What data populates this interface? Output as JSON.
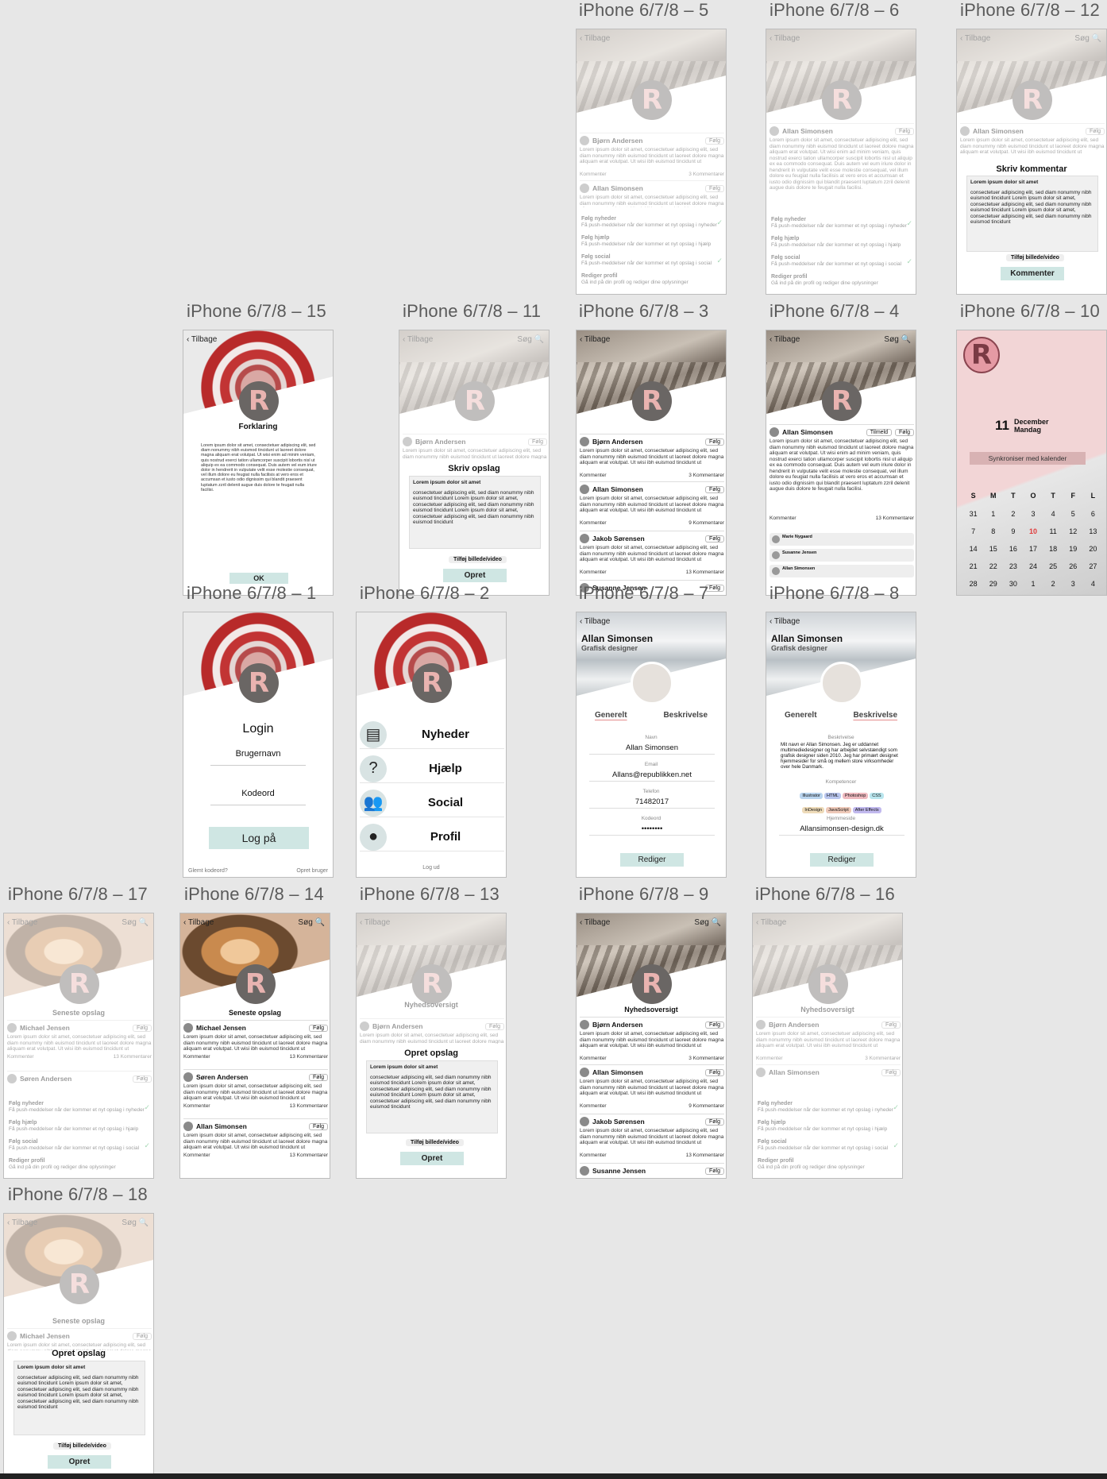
{
  "labels": {
    "s5": "iPhone 6/7/8 – 5",
    "s6": "iPhone 6/7/8 – 6",
    "s12": "iPhone 6/7/8 – 12",
    "s15": "iPhone 6/7/8 – 15",
    "s11": "iPhone 6/7/8 – 11",
    "s3": "iPhone 6/7/8 – 3",
    "s4": "iPhone 6/7/8 – 4",
    "s10": "iPhone 6/7/8 – 10",
    "s1": "iPhone 6/7/8 – 1",
    "s2": "iPhone 6/7/8 – 2",
    "s7": "iPhone 6/7/8 – 7",
    "s8": "iPhone 6/7/8 – 8",
    "s17": "iPhone 6/7/8 – 17",
    "s14": "iPhone 6/7/8 – 14",
    "s13": "iPhone 6/7/8 – 13",
    "s9": "iPhone 6/7/8 – 9",
    "s16": "iPhone 6/7/8 – 16",
    "s18": "iPhone 6/7/8 – 18"
  },
  "common": {
    "back": "‹ Tilbage",
    "search": "Søg 🔍",
    "follow": "Følg",
    "comment": "Kommenter",
    "lorem": "Lorem ipsum dolor sit amet, consectetuer adipiscing elit, sed diam nonummy nibh euismod tincidunt ut laoreet dolore magna aliquam erat volutpat. Ut wisi ibh euismod tincidunt ut",
    "lorem_long": "Lorem ipsum dolor sit amet, consectetuer adipiscing elit, sed diam nonummy nibh euismod tincidunt ut laoreet dolore magna aliquam erat volutpat. Ut wisi enim ad minim veniam, quis nostrud exerci tation ullamcorper suscipit lobortis nisl ut aliquip ex ea commodo consequat. Duis autem vel eum iriure dolor in hendrerit in vulputate velit esse molestie consequat, vel illum dolore eu feugiat nulla facilisis at vero eros et accumsan et iusto odio dignissim qui blandit praesent luptatum zzril delenit augue duis dolore te feugait nulla facilisi.",
    "c3": "3 Kommentarer",
    "c9": "9 Kommentarer",
    "c13": "13 Kommentarer",
    "draft_title": "Lorem ipsum dolor sit amet",
    "draft_body": "consectetuer adipiscing elit, sed diam nonummy nibh euismod tincidunt Lorem ipsum dolor sit amet, consectetuer adipiscing elit, sed diam nonummy nibh euismod tincidunt Lorem ipsum dolor sit amet, consectetuer adipiscing elit, sed diam nonummy nibh euismod tincidunt",
    "add_media": "Tilføj billede/video",
    "create": "Opret",
    "create_post": "Opret opslag",
    "write_post": "Skriv opslag",
    "write_comment": "Skriv kommentar",
    "comment_btn": "Kommenter",
    "news_overview": "Nyhedsoversigt",
    "latest_posts": "Seneste opslag",
    "timeline": "Tilmeld"
  },
  "users": {
    "bjorn": "Bjørn Andersen",
    "allan": "Allan Simonsen",
    "jakob": "Jakob Sørensen",
    "susanne": "Susanne Jensen",
    "michael": "Michael Jensen",
    "soren": "Søren Andersen"
  },
  "settings": [
    {
      "title": "Følg nyheder",
      "desc": "Få push-meddelser når der kommer et nyt opslag i nyheder",
      "on": true
    },
    {
      "title": "Følg hjælp",
      "desc": "Få push-meddelser når der kommer et nyt opslag i hjælp",
      "on": false
    },
    {
      "title": "Følg social",
      "desc": "Få push-meddelser når der kommer et nyt opslag i social",
      "on": true
    },
    {
      "title": "Rediger profil",
      "desc": "Gå ind på din profil og rediger dine oplysninger",
      "on": false
    }
  ],
  "s15": {
    "title": "Forklaring",
    "ok": "OK"
  },
  "s10": {
    "day": "11",
    "month": "December",
    "weekday": "Mandag",
    "sync": "Synkroniser med kalender",
    "week": [
      "S",
      "M",
      "T",
      "O",
      "T",
      "F",
      "L"
    ],
    "rows": [
      [
        "31",
        "1",
        "2",
        "3",
        "4",
        "5",
        "6"
      ],
      [
        "7",
        "8",
        "9",
        "10",
        "11",
        "12",
        "13"
      ],
      [
        "14",
        "15",
        "16",
        "17",
        "18",
        "19",
        "20"
      ],
      [
        "21",
        "22",
        "23",
        "24",
        "25",
        "26",
        "27"
      ],
      [
        "28",
        "29",
        "30",
        "1",
        "2",
        "3",
        "4"
      ]
    ]
  },
  "s4": {
    "comments": [
      "Marie Nygaard",
      "Susanne Jensen",
      "Allan Simonsen"
    ]
  },
  "s1": {
    "title": "Login",
    "user": "Brugernavn",
    "pass": "Kodeord",
    "login": "Log på",
    "forgot": "Glemt kodeord?",
    "create": "Opret bruger"
  },
  "s2": {
    "items": [
      "Nyheder",
      "Hjælp",
      "Social",
      "Profil"
    ],
    "logout": "Log ud"
  },
  "s7": {
    "name": "Allan Simonsen",
    "role": "Grafisk designer",
    "tab1": "Generelt",
    "tab2": "Beskrivelse",
    "f_name": "Navn",
    "v_name": "Allan Simonsen",
    "f_email": "Email",
    "v_email": "Allans@republikken.net",
    "f_phone": "Telefon",
    "v_phone": "71482017",
    "f_pass": "Kodeord",
    "v_pass": "••••••••",
    "edit": "Rediger"
  },
  "s8": {
    "f_desc": "Beskrivelse",
    "desc": "Mit navn er Allan Simonsen. Jeg er uddannet multimediedesigner og har arbejdet selvstændigt som grafisk designer siden 2010. Jeg har primært designet hjemmesider for små og mellem store virksomheder over hele Danmark.",
    "f_skills": "Kompetencer",
    "skills": [
      "Illustrator",
      "HTML",
      "Photoshop",
      "CSS",
      "InDesign",
      "JavaScript",
      "After Effects"
    ],
    "f_site": "Hjemmeside",
    "site": "Allansimonsen-design.dk"
  }
}
